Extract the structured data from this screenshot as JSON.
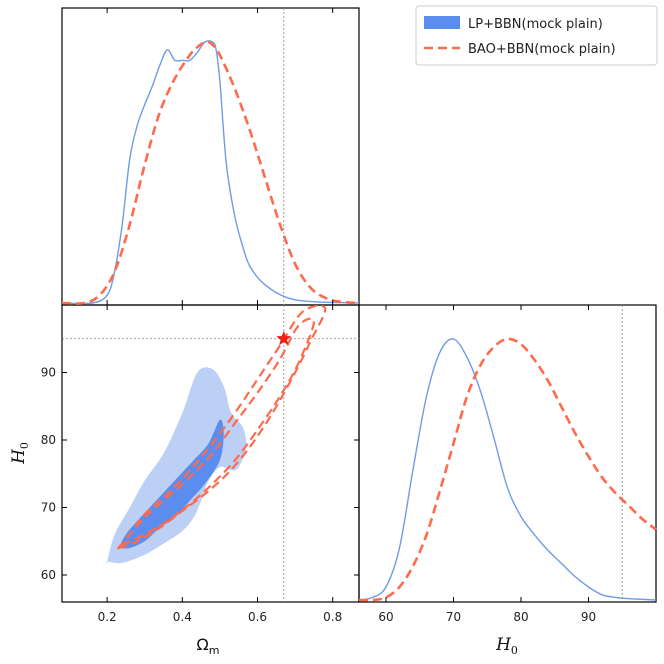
{
  "chart_data": {
    "type": "corner",
    "legend": {
      "placement": "top-right",
      "entries": [
        {
          "label": "LP+BBN(mock plain)",
          "style": "filled",
          "color": "#5b8def"
        },
        {
          "label": "BAO+BBN(mock plain)",
          "style": "dashed",
          "color": "#ff6a4d"
        }
      ]
    },
    "parameters": [
      {
        "name": "Omega_m",
        "label_main": "Ω",
        "label_sub": "m",
        "range": [
          0.08,
          0.87
        ],
        "ticks": [
          0.2,
          0.4,
          0.6,
          0.8
        ],
        "tick_labels": [
          "0.2",
          "0.4",
          "0.6",
          "0.8"
        ]
      },
      {
        "name": "H0",
        "label_main": "H",
        "label_sub": "0",
        "range": [
          56,
          100
        ],
        "ticks": [
          60,
          70,
          80,
          90
        ],
        "tick_labels": [
          "60",
          "70",
          "80",
          "90"
        ]
      }
    ],
    "truth": {
      "Omega_m": 0.67,
      "H0": 95
    },
    "series": [
      {
        "name": "LP+BBN(mock plain)",
        "color": "#5b8def",
        "omega_m_pdf": {
          "x": [
            0.08,
            0.16,
            0.2,
            0.22,
            0.24,
            0.26,
            0.28,
            0.3,
            0.32,
            0.34,
            0.36,
            0.38,
            0.4,
            0.42,
            0.44,
            0.46,
            0.48,
            0.49,
            0.5,
            0.51,
            0.52,
            0.54,
            0.56,
            0.58,
            0.62,
            0.68,
            0.75,
            0.87
          ],
          "y": [
            0.0,
            0.0,
            0.03,
            0.12,
            0.3,
            0.55,
            0.68,
            0.76,
            0.83,
            0.91,
            0.97,
            0.93,
            0.93,
            0.93,
            0.96,
            1.0,
            1.0,
            0.97,
            0.85,
            0.65,
            0.5,
            0.33,
            0.22,
            0.14,
            0.07,
            0.02,
            0.005,
            0.0
          ]
        },
        "h0_pdf": {
          "x": [
            56,
            58,
            60,
            62,
            64,
            66,
            68,
            70,
            72,
            74,
            76,
            78,
            80,
            82,
            84,
            86,
            88,
            90,
            92,
            94,
            96,
            100
          ],
          "y": [
            0.0,
            0.01,
            0.05,
            0.2,
            0.5,
            0.78,
            0.95,
            1.0,
            0.93,
            0.8,
            0.62,
            0.43,
            0.32,
            0.25,
            0.19,
            0.14,
            0.09,
            0.05,
            0.02,
            0.01,
            0.005,
            0.0
          ]
        },
        "contour_95": {
          "x": [
            0.2,
            0.24,
            0.3,
            0.36,
            0.4,
            0.43,
            0.45,
            0.47,
            0.5,
            0.53,
            0.55,
            0.57,
            0.56,
            0.53,
            0.51,
            0.48,
            0.44,
            0.4,
            0.35,
            0.3,
            0.26,
            0.22,
            0.2
          ],
          "y": [
            62.0,
            61.8,
            63.0,
            65.0,
            66.5,
            68.5,
            71.0,
            74.0,
            76.0,
            75.5,
            76.0,
            79.0,
            82.0,
            84.0,
            88.0,
            90.5,
            90.0,
            84.0,
            78.0,
            74.0,
            70.0,
            66.0,
            62.0
          ]
        },
        "contour_68": {
          "x": [
            0.23,
            0.26,
            0.3,
            0.34,
            0.38,
            0.42,
            0.46,
            0.5,
            0.51,
            0.5,
            0.47,
            0.43,
            0.38,
            0.33,
            0.28,
            0.25,
            0.23
          ],
          "y": [
            64.0,
            64.0,
            65.0,
            67.0,
            68.5,
            71.0,
            73.5,
            77.0,
            81.0,
            83.0,
            79.5,
            77.0,
            74.0,
            71.0,
            68.0,
            66.0,
            64.0
          ]
        }
      },
      {
        "name": "BAO+BBN(mock plain)",
        "color": "#ff6a4d",
        "omega_m_pdf": {
          "x": [
            0.08,
            0.14,
            0.18,
            0.22,
            0.26,
            0.3,
            0.34,
            0.38,
            0.42,
            0.44,
            0.46,
            0.47,
            0.48,
            0.5,
            0.54,
            0.58,
            0.62,
            0.66,
            0.7,
            0.74,
            0.78,
            0.82,
            0.87
          ],
          "y": [
            0.0,
            0.0,
            0.03,
            0.12,
            0.3,
            0.53,
            0.73,
            0.86,
            0.95,
            0.98,
            1.0,
            1.0,
            0.99,
            0.95,
            0.82,
            0.66,
            0.48,
            0.3,
            0.15,
            0.06,
            0.02,
            0.005,
            0.0
          ]
        },
        "h0_pdf": {
          "x": [
            56,
            58,
            60,
            62,
            64,
            66,
            68,
            70,
            72,
            74,
            76,
            78,
            80,
            82,
            84,
            86,
            88,
            90,
            92,
            94,
            96,
            98,
            100
          ],
          "y": [
            0.0,
            0.0,
            0.01,
            0.05,
            0.13,
            0.25,
            0.42,
            0.6,
            0.78,
            0.9,
            0.97,
            1.0,
            0.98,
            0.92,
            0.84,
            0.74,
            0.64,
            0.55,
            0.47,
            0.41,
            0.36,
            0.31,
            0.27
          ]
        },
        "contour_95": {
          "x": [
            0.23,
            0.28,
            0.34,
            0.4,
            0.46,
            0.52,
            0.58,
            0.64,
            0.7,
            0.74,
            0.78,
            0.72,
            0.66,
            0.6,
            0.54,
            0.48,
            0.42,
            0.36,
            0.3,
            0.26,
            0.23
          ],
          "y": [
            64.0,
            65.0,
            67.0,
            69.5,
            72.0,
            75.0,
            79.0,
            84.0,
            90.0,
            94.5,
            99.5,
            99.0,
            94.0,
            89.0,
            84.0,
            79.5,
            75.5,
            72.0,
            69.0,
            66.0,
            64.0
          ]
        },
        "contour_68": {
          "x": [
            0.24,
            0.3,
            0.36,
            0.42,
            0.48,
            0.54,
            0.6,
            0.66,
            0.71,
            0.75,
            0.71,
            0.66,
            0.6,
            0.54,
            0.48,
            0.42,
            0.36,
            0.3,
            0.26,
            0.24
          ],
          "y": [
            64.5,
            66.0,
            68.0,
            70.5,
            73.5,
            77.0,
            81.5,
            86.5,
            91.5,
            97.5,
            97.0,
            92.0,
            87.0,
            82.5,
            78.0,
            74.5,
            71.5,
            68.5,
            66.0,
            64.5
          ]
        }
      }
    ]
  }
}
